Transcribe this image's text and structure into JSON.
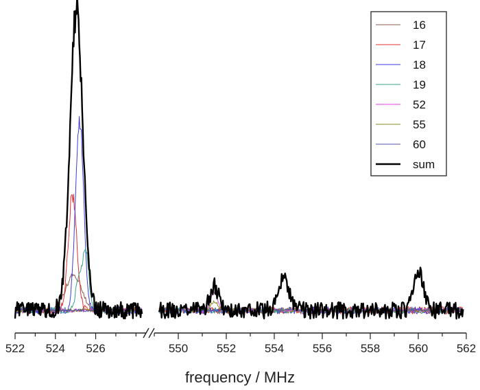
{
  "chart_data": {
    "type": "line",
    "title": "",
    "xlabel": "frequency  /  MHz",
    "ylabel": "",
    "axis_break": true,
    "legend_position": "top-right",
    "grid": false,
    "x_segments": [
      {
        "xlim": [
          522,
          528.5
        ],
        "ticks": [
          522,
          524,
          526
        ],
        "tick_labels": [
          "522",
          "524",
          "526"
        ]
      },
      {
        "xlim": [
          549,
          562
        ],
        "ticks": [
          550,
          552,
          554,
          556,
          558,
          560,
          562
        ],
        "tick_labels": [
          "550",
          "552",
          "554",
          "556",
          "558",
          "560",
          "562"
        ]
      }
    ],
    "ylim": [
      -0.06,
      1.02
    ],
    "series": [
      {
        "name": "16",
        "color": "#8b5a4a",
        "width": 1,
        "noise": 0.008,
        "peaks": [
          [
            524.9,
            0.12,
            0.55
          ]
        ],
        "right_peaks": []
      },
      {
        "name": "17",
        "color": "#e03030",
        "width": 1,
        "noise": 0.012,
        "peaks": [
          [
            524.85,
            0.38,
            0.3
          ]
        ],
        "right_peaks": []
      },
      {
        "name": "18",
        "color": "#3a3ae0",
        "width": 1,
        "noise": 0.012,
        "peaks": [
          [
            525.2,
            0.64,
            0.28
          ]
        ],
        "right_peaks": []
      },
      {
        "name": "19",
        "color": "#3aa08a",
        "width": 1,
        "noise": 0.01,
        "peaks": [
          [
            525.5,
            0.2,
            0.22
          ],
          [
            525.15,
            0.1,
            0.2
          ]
        ],
        "right_peaks": []
      },
      {
        "name": "52",
        "color": "#e040e0",
        "width": 1,
        "noise": 0.006,
        "peaks": [],
        "right_peaks": [
          [
            551.5,
            0.06,
            0.2
          ]
        ]
      },
      {
        "name": "55",
        "color": "#8a8a20",
        "width": 1,
        "noise": 0.006,
        "peaks": [],
        "right_peaks": [
          [
            551.5,
            0.03,
            0.2
          ]
        ]
      },
      {
        "name": "60",
        "color": "#5050b0",
        "width": 1,
        "noise": 0.004,
        "peaks": [],
        "right_peaks": []
      },
      {
        "name": "sum",
        "color": "#000000",
        "width": 2.4,
        "noise": 0.028,
        "peaks": [
          [
            525.05,
            1.0,
            0.45
          ]
        ],
        "right_peaks": [
          [
            551.5,
            0.08,
            0.25
          ],
          [
            554.4,
            0.1,
            0.35
          ],
          [
            560.0,
            0.13,
            0.28
          ]
        ]
      }
    ]
  }
}
